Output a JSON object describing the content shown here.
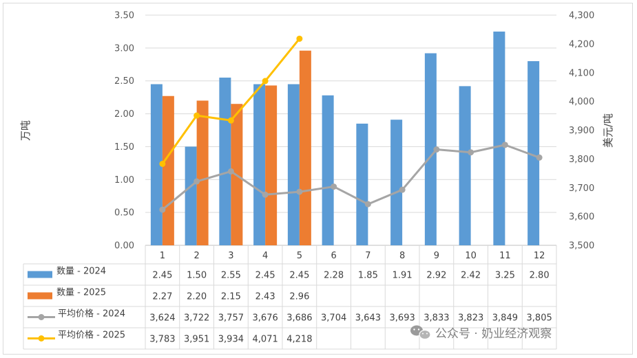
{
  "chart_data": {
    "type": "bar+line",
    "categories": [
      "1",
      "2",
      "3",
      "4",
      "5",
      "6",
      "7",
      "8",
      "9",
      "10",
      "11",
      "12"
    ],
    "ylabel_left": "万吨",
    "ylabel_right": "美元/吨",
    "ylim_left": [
      0,
      3.5
    ],
    "ylim_right": [
      3500,
      4300
    ],
    "left_ticks": [
      "0.00",
      "0.50",
      "1.00",
      "1.50",
      "2.00",
      "2.50",
      "3.00",
      "3.50"
    ],
    "right_ticks": [
      "3,500",
      "3,600",
      "3,700",
      "3,800",
      "3,900",
      "4,000",
      "4,100",
      "4,200",
      "4,300"
    ],
    "legend_position": "bottom-table",
    "series": [
      {
        "name": "数量 - 2024",
        "kind": "bar",
        "axis": "left",
        "color": "#5b9bd5",
        "values": [
          2.45,
          1.5,
          2.55,
          2.45,
          2.45,
          2.28,
          1.85,
          1.91,
          2.92,
          2.42,
          3.25,
          2.8
        ],
        "labels": [
          "2.45",
          "1.50",
          "2.55",
          "2.45",
          "2.45",
          "2.28",
          "1.85",
          "1.91",
          "2.92",
          "2.42",
          "3.25",
          "2.80"
        ]
      },
      {
        "name": "数量 - 2025",
        "kind": "bar",
        "axis": "left",
        "color": "#ed7d31",
        "values": [
          2.27,
          2.2,
          2.15,
          2.43,
          2.96,
          null,
          null,
          null,
          null,
          null,
          null,
          null
        ],
        "labels": [
          "2.27",
          "2.20",
          "2.15",
          "2.43",
          "2.96",
          "",
          "",
          "",
          "",
          "",
          "",
          ""
        ]
      },
      {
        "name": "平均价格 - 2024",
        "kind": "line",
        "axis": "right",
        "color": "#a5a5a5",
        "values": [
          3624,
          3722,
          3757,
          3676,
          3686,
          3704,
          3643,
          3693,
          3833,
          3823,
          3849,
          3805
        ],
        "labels": [
          "3,624",
          "3,722",
          "3,757",
          "3,676",
          "3,686",
          "3,704",
          "3,643",
          "3,693",
          "3,833",
          "3,823",
          "3,849",
          "3,805"
        ]
      },
      {
        "name": "平均价格 - 2025",
        "kind": "line",
        "axis": "right",
        "color": "#ffc000",
        "values": [
          3783,
          3951,
          3934,
          4071,
          4218,
          null,
          null,
          null,
          null,
          null,
          null,
          null
        ],
        "labels": [
          "3,783",
          "3,951",
          "3,934",
          "4,071",
          "4,218",
          "",
          "",
          "",
          "",
          "",
          "",
          ""
        ]
      }
    ]
  },
  "watermark": {
    "icon": "wechat-icon",
    "text": "公众号 · 奶业经济观察"
  }
}
